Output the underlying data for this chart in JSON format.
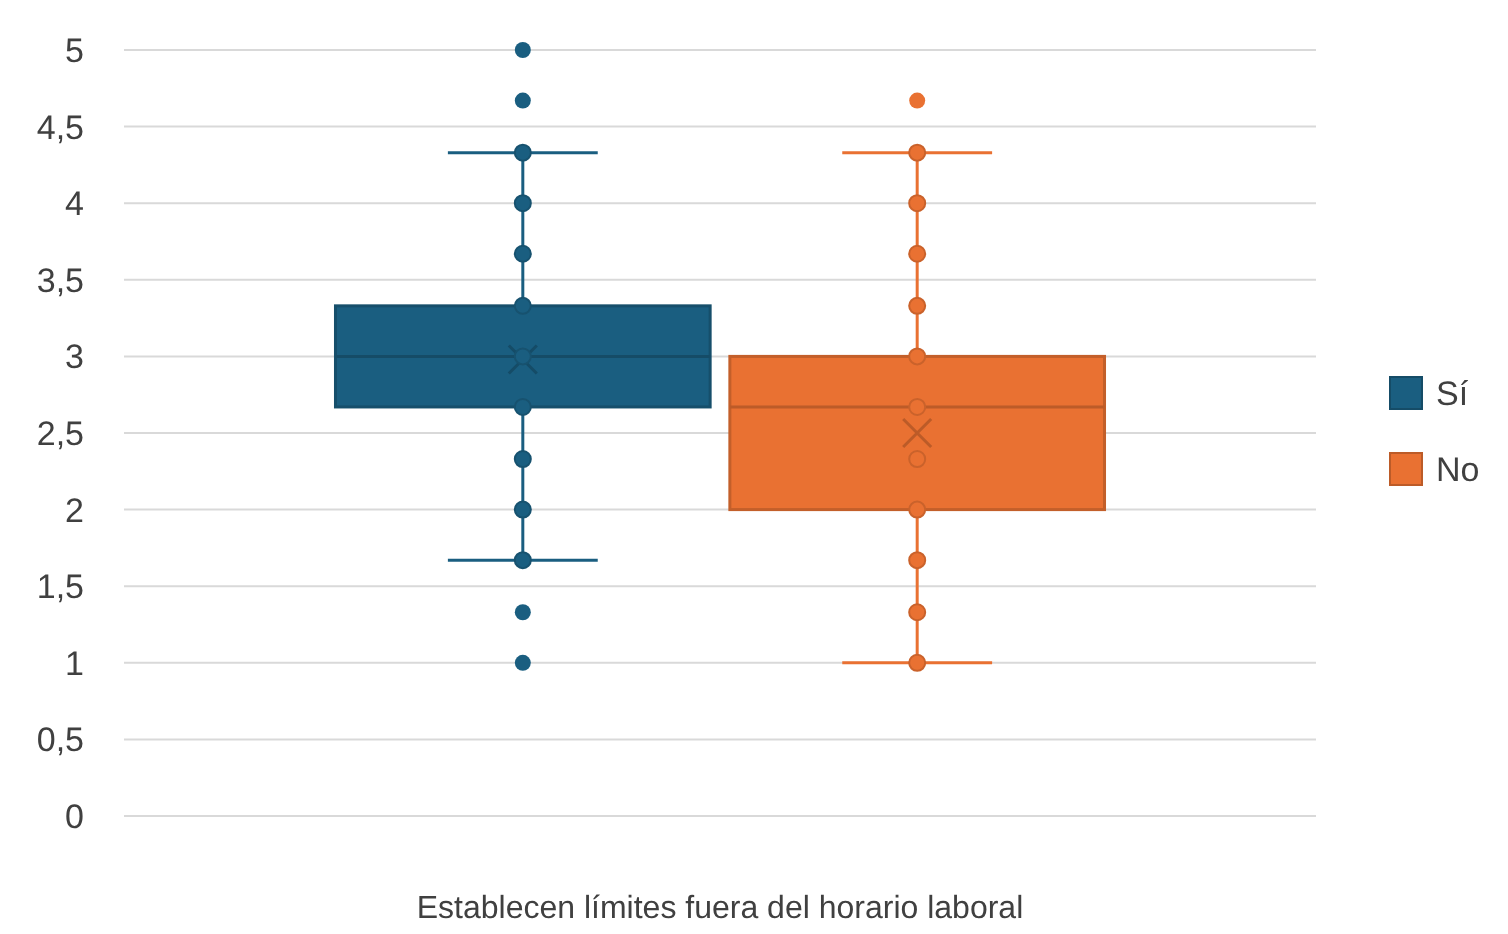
{
  "chart_data": {
    "type": "box",
    "categories": [
      "Establecen límites fuera del horario laboral"
    ],
    "ylim": [
      0,
      5
    ],
    "yticks": [
      0,
      {
        "value": 0.5,
        "label": "0,5"
      },
      1,
      {
        "value": 1.5,
        "label": "1,5"
      },
      2,
      {
        "value": 2.5,
        "label": "2,5"
      },
      3,
      {
        "value": 3.5,
        "label": "3,5"
      },
      4,
      {
        "value": 4.5,
        "label": "4,5"
      },
      5
    ],
    "grid": "y",
    "legend": "right",
    "series": [
      {
        "name": "Sí",
        "color": "#1a5e80",
        "boxes": [
          {
            "low": 1.67,
            "q1": 2.67,
            "median": 3,
            "q3": 3.33,
            "high": 4.33,
            "mean": 2.98,
            "outliers": [
              1,
              1.33,
              4.67,
              5
            ]
          }
        ]
      },
      {
        "name": "No",
        "color": "#e97132",
        "boxes": [
          {
            "low": 1,
            "q1": 2,
            "median": 2.67,
            "q3": 3,
            "high": 4.33,
            "mean": 2.5,
            "outliers": [
              4.67
            ]
          }
        ]
      },
      {
        "type": "scatter",
        "color": "#1a5e80",
        "x": [
          "Establecen límites fuera del horario laboral",
          "Establecen límites fuera del horario laboral",
          "Establecen límites fuera del horario laboral",
          "Establecen límites fuera del horario laboral",
          "Establecen límites fuera del horario laboral",
          "Establecen límites fuera del horario laboral",
          "Establecen límites fuera del horario laboral",
          "Establecen límites fuera del horario laboral",
          "Establecen límites fuera del horario laboral"
        ],
        "values": [
          1.67,
          2,
          2.33,
          2.67,
          3,
          3.33,
          3.67,
          4,
          4.33
        ]
      },
      {
        "type": "scatter",
        "color": "#e97132",
        "x": [
          "Establecen límites fuera del horario laboral",
          "Establecen límites fuera del horario laboral",
          "Establecen límites fuera del horario laboral",
          "Establecen límites fuera del horario laboral",
          "Establecen límites fuera del horario laboral",
          "Establecen límites fuera del horario laboral",
          "Establecen límites fuera del horario laboral",
          "Establecen límites fuera del horario laboral",
          "Establecen límites fuera del horario laboral",
          "Establecen límites fuera del horario laboral",
          "Establecen límites fuera del horario laboral"
        ],
        "values": [
          1,
          1.33,
          1.67,
          2,
          2.33,
          2.67,
          3,
          3.33,
          3.67,
          4,
          4.33
        ]
      }
    ]
  }
}
